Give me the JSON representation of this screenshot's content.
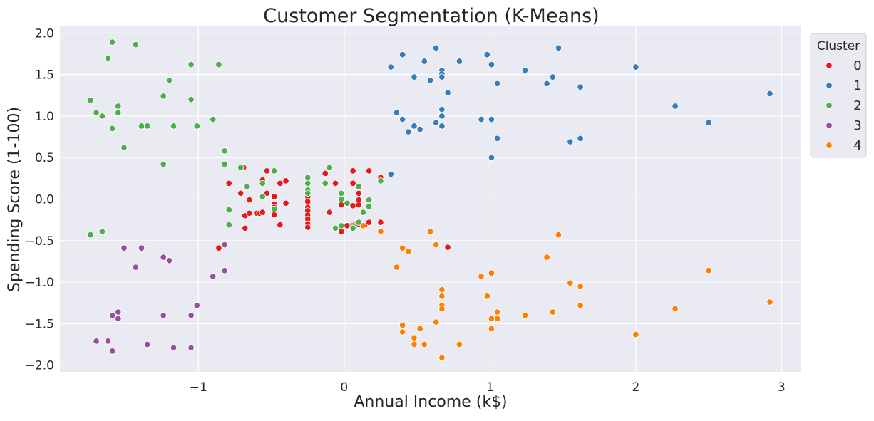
{
  "chart_data": {
    "type": "scatter",
    "title": "Customer Segmentation (K-Means)",
    "xlabel": "Annual Income (k$)",
    "ylabel": "Spending Score (1-100)",
    "xlim": [
      -1.95,
      3.13
    ],
    "ylim": [
      -2.08,
      2.08
    ],
    "xticks": [
      -1,
      0,
      1,
      2,
      3
    ],
    "yticks": [
      -2.0,
      -1.5,
      -1.0,
      -0.5,
      0.0,
      0.5,
      1.0,
      1.5,
      2.0
    ],
    "xtick_labels": [
      "−1",
      "0",
      "1",
      "2",
      "3"
    ],
    "ytick_labels": [
      "−2.0",
      "−1.5",
      "−1.0",
      "−0.5",
      "0.0",
      "0.5",
      "1.0",
      "1.5",
      "2.0"
    ],
    "grid": true,
    "background": "#eaeaf2",
    "grid_color": "#ffffff",
    "legend": {
      "title": "Cluster",
      "placement": "outside-right-top"
    },
    "series": [
      {
        "name": "0",
        "color": "#e41a1c",
        "points": [
          [
            -0.86,
            -0.59
          ],
          [
            -0.79,
            0.19
          ],
          [
            -0.79,
            -0.13
          ],
          [
            -0.71,
            0.07
          ],
          [
            -0.69,
            0.38
          ],
          [
            -0.68,
            -0.2
          ],
          [
            -0.68,
            -0.35
          ],
          [
            -0.65,
            -0.01
          ],
          [
            -0.65,
            -0.17
          ],
          [
            -0.6,
            -0.17
          ],
          [
            -0.58,
            -0.17
          ],
          [
            -0.56,
            0.23
          ],
          [
            -0.56,
            -0.16
          ],
          [
            -0.53,
            0.34
          ],
          [
            -0.53,
            0.07
          ],
          [
            -0.48,
            0.03
          ],
          [
            -0.48,
            -0.06
          ],
          [
            -0.48,
            -0.1
          ],
          [
            -0.48,
            -0.19
          ],
          [
            -0.44,
            0.19
          ],
          [
            -0.44,
            -0.31
          ],
          [
            -0.4,
            0.22
          ],
          [
            -0.4,
            -0.05
          ],
          [
            -0.25,
            0.03
          ],
          [
            -0.25,
            -0.03
          ],
          [
            -0.25,
            -0.1
          ],
          [
            -0.25,
            -0.14
          ],
          [
            -0.25,
            -0.19
          ],
          [
            -0.25,
            -0.24
          ],
          [
            -0.25,
            -0.3
          ],
          [
            -0.25,
            -0.34
          ],
          [
            -0.13,
            0.31
          ],
          [
            -0.1,
            -0.16
          ],
          [
            -0.06,
            0.19
          ],
          [
            -0.02,
            -0.01
          ],
          [
            -0.02,
            -0.07
          ],
          [
            -0.02,
            -0.39
          ],
          [
            0.02,
            -0.32
          ],
          [
            0.06,
            0.34
          ],
          [
            0.06,
            0.19
          ],
          [
            0.06,
            -0.08
          ],
          [
            0.06,
            -0.3
          ],
          [
            0.1,
            0.07
          ],
          [
            0.1,
            -0.01
          ],
          [
            0.1,
            -0.07
          ],
          [
            0.1,
            -0.3
          ],
          [
            0.14,
            -0.32
          ],
          [
            0.17,
            0.34
          ],
          [
            0.17,
            -0.28
          ],
          [
            0.25,
            0.26
          ],
          [
            0.25,
            -0.28
          ],
          [
            0.71,
            -0.58
          ]
        ]
      },
      {
        "name": "1",
        "color": "#377eb8",
        "points": [
          [
            0.32,
            1.59
          ],
          [
            0.32,
            0.3
          ],
          [
            0.36,
            1.04
          ],
          [
            0.4,
            1.74
          ],
          [
            0.4,
            0.96
          ],
          [
            0.44,
            0.81
          ],
          [
            0.48,
            1.47
          ],
          [
            0.48,
            0.88
          ],
          [
            0.52,
            0.84
          ],
          [
            0.55,
            1.66
          ],
          [
            0.59,
            1.43
          ],
          [
            0.63,
            1.82
          ],
          [
            0.63,
            0.92
          ],
          [
            0.67,
            1.55
          ],
          [
            0.67,
            1.51
          ],
          [
            0.67,
            1.47
          ],
          [
            0.67,
            1.08
          ],
          [
            0.67,
            1.0
          ],
          [
            0.67,
            0.88
          ],
          [
            0.71,
            1.28
          ],
          [
            0.79,
            1.66
          ],
          [
            0.94,
            0.96
          ],
          [
            0.98,
            1.74
          ],
          [
            1.01,
            1.62
          ],
          [
            1.01,
            0.96
          ],
          [
            1.01,
            0.5
          ],
          [
            1.05,
            1.39
          ],
          [
            1.05,
            0.73
          ],
          [
            1.24,
            1.55
          ],
          [
            1.39,
            1.39
          ],
          [
            1.43,
            1.47
          ],
          [
            1.47,
            1.82
          ],
          [
            1.55,
            0.69
          ],
          [
            1.62,
            1.35
          ],
          [
            1.62,
            0.73
          ],
          [
            2.0,
            1.59
          ],
          [
            2.27,
            1.12
          ],
          [
            2.5,
            0.92
          ],
          [
            2.92,
            1.27
          ]
        ]
      },
      {
        "name": "2",
        "color": "#4daf4a",
        "points": [
          [
            -1.74,
            1.19
          ],
          [
            -1.74,
            -0.43
          ],
          [
            -1.7,
            1.04
          ],
          [
            -1.66,
            1.0
          ],
          [
            -1.66,
            -0.39
          ],
          [
            -1.62,
            1.7
          ],
          [
            -1.59,
            1.89
          ],
          [
            -1.59,
            0.85
          ],
          [
            -1.55,
            1.12
          ],
          [
            -1.55,
            1.04
          ],
          [
            -1.51,
            0.62
          ],
          [
            -1.43,
            1.86
          ],
          [
            -1.39,
            0.88
          ],
          [
            -1.35,
            0.88
          ],
          [
            -1.24,
            1.24
          ],
          [
            -1.24,
            0.42
          ],
          [
            -1.2,
            1.43
          ],
          [
            -1.17,
            0.88
          ],
          [
            -1.05,
            1.62
          ],
          [
            -1.05,
            1.2
          ],
          [
            -1.01,
            0.88
          ],
          [
            -0.9,
            0.96
          ],
          [
            -0.86,
            1.62
          ],
          [
            -0.82,
            0.58
          ],
          [
            -0.82,
            0.42
          ],
          [
            -0.79,
            -0.13
          ],
          [
            -0.79,
            -0.31
          ],
          [
            -0.71,
            0.38
          ],
          [
            -0.67,
            0.15
          ],
          [
            -0.56,
            0.19
          ],
          [
            -0.56,
            0.03
          ],
          [
            -0.48,
            0.34
          ],
          [
            -0.48,
            -0.12
          ],
          [
            -0.25,
            0.26
          ],
          [
            -0.25,
            0.19
          ],
          [
            -0.25,
            0.11
          ],
          [
            -0.25,
            0.07
          ],
          [
            -0.13,
            0.19
          ],
          [
            -0.1,
            0.38
          ],
          [
            -0.06,
            -0.35
          ],
          [
            -0.02,
            0.07
          ],
          [
            -0.02,
            0.0
          ],
          [
            -0.02,
            -0.32
          ],
          [
            0.02,
            -0.05
          ],
          [
            0.06,
            -0.32
          ],
          [
            0.06,
            -0.35
          ],
          [
            0.1,
            0.15
          ],
          [
            0.1,
            -0.28
          ],
          [
            0.13,
            -0.16
          ],
          [
            0.17,
            -0.01
          ],
          [
            0.17,
            -0.09
          ],
          [
            0.25,
            0.22
          ]
        ]
      },
      {
        "name": "3",
        "color": "#984ea3",
        "points": [
          [
            -1.7,
            -1.71
          ],
          [
            -1.62,
            -1.71
          ],
          [
            -1.59,
            -1.4
          ],
          [
            -1.59,
            -1.83
          ],
          [
            -1.55,
            -1.36
          ],
          [
            -1.55,
            -1.44
          ],
          [
            -1.51,
            -0.59
          ],
          [
            -1.43,
            -0.82
          ],
          [
            -1.39,
            -0.59
          ],
          [
            -1.35,
            -1.75
          ],
          [
            -1.24,
            -0.7
          ],
          [
            -1.24,
            -1.4
          ],
          [
            -1.2,
            -0.74
          ],
          [
            -1.17,
            -1.79
          ],
          [
            -1.05,
            -1.4
          ],
          [
            -1.05,
            -1.79
          ],
          [
            -1.01,
            -1.28
          ],
          [
            -0.9,
            -0.93
          ],
          [
            -0.82,
            -0.55
          ],
          [
            -0.82,
            -0.86
          ]
        ]
      },
      {
        "name": "4",
        "color": "#ff7f00",
        "points": [
          [
            0.13,
            -0.32
          ],
          [
            0.25,
            -0.39
          ],
          [
            0.36,
            -0.82
          ],
          [
            0.4,
            -0.59
          ],
          [
            0.4,
            -1.52
          ],
          [
            0.4,
            -1.6
          ],
          [
            0.44,
            -0.63
          ],
          [
            0.48,
            -1.67
          ],
          [
            0.48,
            -1.75
          ],
          [
            0.52,
            -1.56
          ],
          [
            0.55,
            -1.75
          ],
          [
            0.59,
            -0.39
          ],
          [
            0.63,
            -0.55
          ],
          [
            0.63,
            -1.48
          ],
          [
            0.67,
            -1.09
          ],
          [
            0.67,
            -1.17
          ],
          [
            0.67,
            -1.28
          ],
          [
            0.67,
            -1.32
          ],
          [
            0.67,
            -1.91
          ],
          [
            0.79,
            -1.75
          ],
          [
            0.94,
            -0.93
          ],
          [
            0.98,
            -1.17
          ],
          [
            1.01,
            -0.89
          ],
          [
            1.01,
            -1.44
          ],
          [
            1.01,
            -1.56
          ],
          [
            1.05,
            -1.36
          ],
          [
            1.05,
            -1.44
          ],
          [
            1.24,
            -1.4
          ],
          [
            1.39,
            -0.7
          ],
          [
            1.43,
            -1.36
          ],
          [
            1.47,
            -0.43
          ],
          [
            1.55,
            -1.01
          ],
          [
            1.62,
            -1.05
          ],
          [
            1.62,
            -1.28
          ],
          [
            2.0,
            -1.63
          ],
          [
            2.27,
            -1.32
          ],
          [
            2.5,
            -0.86
          ],
          [
            2.92,
            -1.24
          ]
        ]
      }
    ]
  }
}
